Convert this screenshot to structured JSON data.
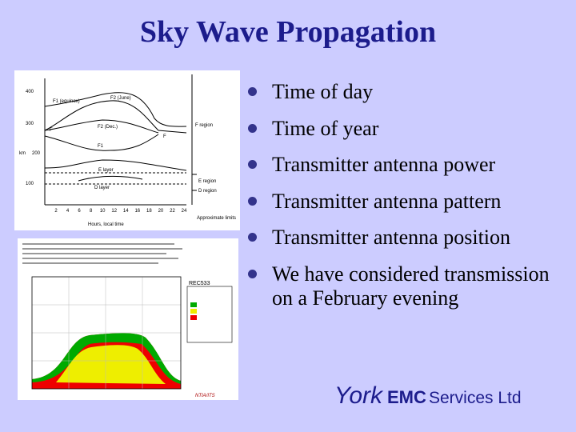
{
  "title": "Sky Wave Propagation",
  "bullets": [
    "Time of day",
    "Time of year",
    "Transmitter antenna power",
    "Transmitter antenna pattern",
    "Transmitter antenna position",
    "We have considered transmission on a February evening"
  ],
  "ionosphere_figure": {
    "height_labels": [
      "400",
      "300",
      "200",
      "100"
    ],
    "height_unit": "km",
    "hour_labels": [
      "2",
      "4",
      "6",
      "8",
      "10",
      "12",
      "14",
      "16",
      "18",
      "20",
      "22",
      "24"
    ],
    "x_axis_label": "Hours, local time",
    "layer_labels": [
      "F1 (equinox)",
      "F2 (June)",
      "F2 (Dec.)",
      "F",
      "F",
      "F1",
      "E layer",
      "D layer"
    ],
    "region_labels": [
      "F region",
      "E region",
      "D region",
      "Approximate limits"
    ]
  },
  "prediction_figure": {
    "model": "REC533",
    "source": "NTIA/ITS"
  },
  "logo": {
    "york": "York",
    "emc": "EMC",
    "services": "Services Ltd"
  }
}
